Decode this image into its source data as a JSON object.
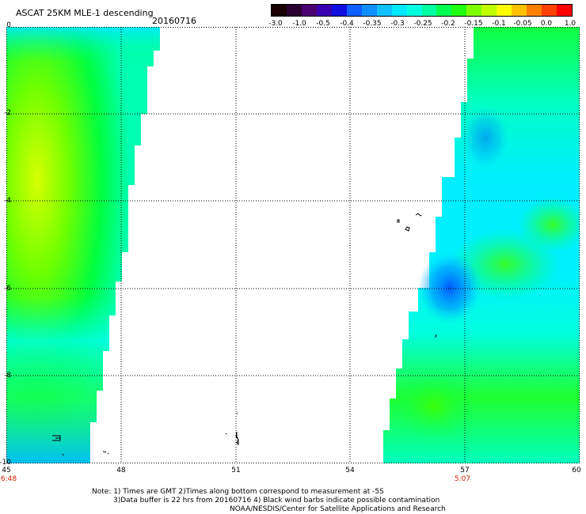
{
  "title": "ASCAT 25KM MLE-1 descending",
  "date": "20160716",
  "colorbar": {
    "colors": [
      "#1a0000",
      "#2a0030",
      "#4a0070",
      "#3a00b0",
      "#1010e0",
      "#1060ff",
      "#1090ff",
      "#10c0ff",
      "#00e8ff",
      "#00ffe0",
      "#00ffa0",
      "#00ff50",
      "#20ff10",
      "#80ff00",
      "#c0ff00",
      "#ffff00",
      "#ffc000",
      "#ff8000",
      "#ff4000",
      "#ff0000"
    ],
    "labels": [
      "-3.0",
      "-1.0",
      "-0.5",
      "-0.4",
      "-0.35",
      "-0.3",
      "-0.25",
      "-0.2",
      "-0.15",
      "-0.1",
      "-0.05",
      "0.0",
      "1.0"
    ]
  },
  "axes": {
    "lon_ticks": [
      "45",
      "48",
      "51",
      "54",
      "57",
      "60"
    ],
    "lat_ticks": [
      "0",
      "-2",
      "-4",
      "-6",
      "-8",
      "-10"
    ],
    "lon_range": [
      45,
      60
    ],
    "lat_range": [
      0,
      -10
    ]
  },
  "pass_times": [
    "6:48",
    "5:07"
  ],
  "swaths": [
    {
      "name": "west swath",
      "lon_left": 45,
      "lon_right_top": 48.9,
      "lon_right_bottom": 47.0,
      "lat_top": 0,
      "lat_bottom": -10
    },
    {
      "name": "east swath",
      "lon_left_top": 57.2,
      "lon_left_bottom": 54.6,
      "lon_right": 60,
      "lat_top": 0,
      "lat_bottom": -10
    }
  ],
  "notes": [
    "Note: 1) Times are GMT 2)Times along bottom correspond to measurement at -5S",
    "3)Data buffer is 22 hrs from 20160716 4) Black wind barbs indicate possible contamination",
    "NOAA/NESDIS/Center for Satellite Applications and Research"
  ]
}
